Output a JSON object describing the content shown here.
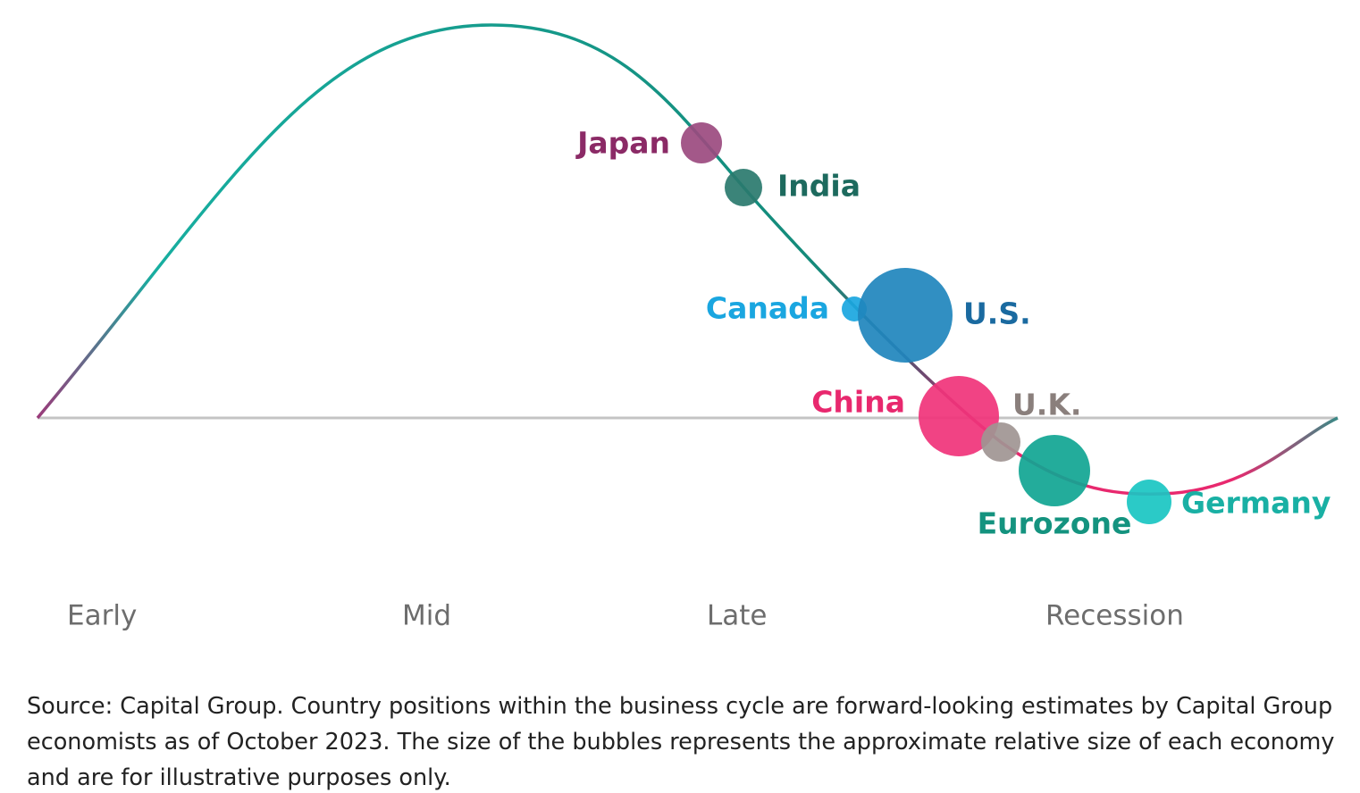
{
  "countries": [
    {
      "label": "Japan",
      "color": "#9b4a7f",
      "label_color": "#8b2a66"
    },
    {
      "label": "India",
      "color": "#2a7a6e",
      "label_color": "#1d6a5e"
    },
    {
      "label": "Canada",
      "color": "#1aa6e0",
      "label_color": "#1aa6e0"
    },
    {
      "label": "U.S.",
      "color": "#1f86bd",
      "label_color": "#1a6aa0"
    },
    {
      "label": "China",
      "color": "#f0337a",
      "label_color": "#e8286e"
    },
    {
      "label": "U.K.",
      "color": "#a09592",
      "label_color": "#8a7f7c"
    },
    {
      "label": "Eurozone",
      "color": "#10a592",
      "label_color": "#14937f"
    },
    {
      "label": "Germany",
      "color": "#19c6c2",
      "label_color": "#19b0a4"
    }
  ],
  "phases": [
    "Early",
    "Mid",
    "Late",
    "Recession"
  ],
  "source": [
    "Source: Capital Group. Country positions within the business cycle are forward-looking estimates by Capital Group",
    "economists as of October 2023. The size of the bubbles represents the approximate relative size of each economy",
    "and are for illustrative purposes only."
  ]
}
